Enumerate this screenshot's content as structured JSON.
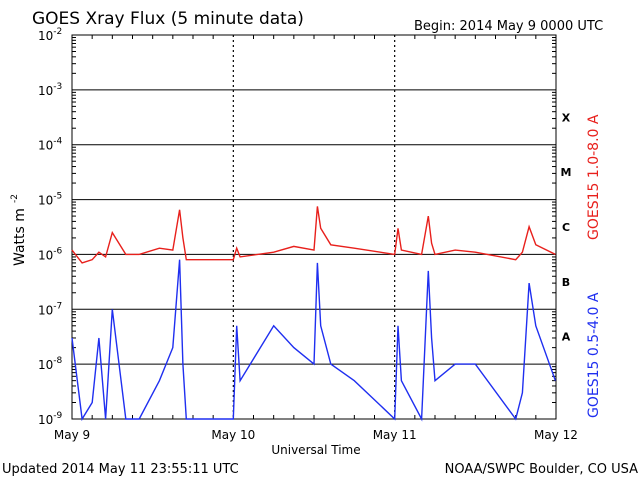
{
  "chart_data": {
    "type": "line",
    "title": "GOES Xray Flux (5 minute data)",
    "begin": "Begin:  2014 May 9 0000 UTC",
    "xlabel": "Universal Time",
    "ylabel": "Watts m",
    "ylabel_sup": "-2",
    "log_scale_y": true,
    "ylim": [
      1e-09,
      0.01
    ],
    "xlim": [
      "2014-05-09",
      "2014-05-12"
    ],
    "x_ticks": [
      "May 9",
      "May 10",
      "May 11",
      "May 12"
    ],
    "y_ticks": [
      {
        "base": "10",
        "exp": "-9"
      },
      {
        "base": "10",
        "exp": "-8"
      },
      {
        "base": "10",
        "exp": "-7"
      },
      {
        "base": "10",
        "exp": "-6"
      },
      {
        "base": "10",
        "exp": "-5"
      },
      {
        "base": "10",
        "exp": "-4"
      },
      {
        "base": "10",
        "exp": "-3"
      },
      {
        "base": "10",
        "exp": "-2"
      }
    ],
    "flare_classes": [
      "A",
      "B",
      "C",
      "M",
      "X"
    ],
    "series": [
      {
        "name": "GOES15 1.0-8.0 A",
        "color": "#e8201c",
        "x": [
          "2014-05-09 00:00",
          "2014-05-09 01:30",
          "2014-05-09 03:00",
          "2014-05-09 04:00",
          "2014-05-09 05:00",
          "2014-05-09 06:00",
          "2014-05-09 08:00",
          "2014-05-09 10:00",
          "2014-05-09 13:00",
          "2014-05-09 15:00",
          "2014-05-09 16:00",
          "2014-05-09 16:30",
          "2014-05-09 17:00",
          "2014-05-09 20:00",
          "2014-05-10 00:00",
          "2014-05-10 00:30",
          "2014-05-10 01:00",
          "2014-05-10 06:00",
          "2014-05-10 09:00",
          "2014-05-10 12:00",
          "2014-05-10 12:30",
          "2014-05-10 13:00",
          "2014-05-10 14:30",
          "2014-05-10 18:00",
          "2014-05-11 00:00",
          "2014-05-11 00:30",
          "2014-05-11 01:00",
          "2014-05-11 04:00",
          "2014-05-11 05:00",
          "2014-05-11 05:30",
          "2014-05-11 06:00",
          "2014-05-11 09:00",
          "2014-05-11 12:00",
          "2014-05-11 18:00",
          "2014-05-11 19:00",
          "2014-05-11 20:00",
          "2014-05-11 21:00",
          "2014-05-11 23:55"
        ],
        "values": [
          1.2e-06,
          7e-07,
          8e-07,
          1.1e-06,
          9e-07,
          2.5e-06,
          1e-06,
          1e-06,
          1.3e-06,
          1.2e-06,
          6.5e-06,
          2e-06,
          8e-07,
          8e-07,
          8e-07,
          1.3e-06,
          9e-07,
          1.1e-06,
          1.4e-06,
          1.2e-06,
          7.5e-06,
          3e-06,
          1.5e-06,
          1.3e-06,
          1e-06,
          3e-06,
          1.2e-06,
          1e-06,
          5e-06,
          1.6e-06,
          1e-06,
          1.2e-06,
          1.1e-06,
          8e-07,
          1.1e-06,
          3.2e-06,
          1.5e-06,
          1e-06
        ]
      },
      {
        "name": "GOES15 0.5-4.0 A",
        "color": "#1f2ff0",
        "x": [
          "2014-05-09 00:00",
          "2014-05-09 01:30",
          "2014-05-09 03:00",
          "2014-05-09 04:00",
          "2014-05-09 05:00",
          "2014-05-09 06:00",
          "2014-05-09 08:00",
          "2014-05-09 10:00",
          "2014-05-09 13:00",
          "2014-05-09 15:00",
          "2014-05-09 16:00",
          "2014-05-09 16:30",
          "2014-05-09 17:00",
          "2014-05-09 20:00",
          "2014-05-10 00:00",
          "2014-05-10 00:30",
          "2014-05-10 01:00",
          "2014-05-10 06:00",
          "2014-05-10 09:00",
          "2014-05-10 12:00",
          "2014-05-10 12:30",
          "2014-05-10 13:00",
          "2014-05-10 14:30",
          "2014-05-10 18:00",
          "2014-05-11 00:00",
          "2014-05-11 00:30",
          "2014-05-11 01:00",
          "2014-05-11 04:00",
          "2014-05-11 05:00",
          "2014-05-11 05:30",
          "2014-05-11 06:00",
          "2014-05-11 09:00",
          "2014-05-11 12:00",
          "2014-05-11 18:00",
          "2014-05-11 19:00",
          "2014-05-11 20:00",
          "2014-05-11 21:00",
          "2014-05-11 23:55"
        ],
        "values": [
          3e-08,
          1e-09,
          2e-09,
          3e-08,
          1e-09,
          1e-07,
          1e-09,
          1e-09,
          5e-09,
          2e-08,
          8e-07,
          1e-08,
          1e-09,
          1e-09,
          1e-09,
          5e-08,
          5e-09,
          5e-08,
          2e-08,
          1e-08,
          7e-07,
          5e-08,
          1e-08,
          5e-09,
          1e-09,
          5e-08,
          5e-09,
          1e-09,
          5e-07,
          3e-08,
          5e-09,
          1e-08,
          1e-08,
          1e-09,
          3e-09,
          3e-07,
          5e-08,
          5e-09
        ]
      }
    ]
  },
  "footer": {
    "updated": "Updated 2014 May 11 23:55:11 UTC",
    "credit": "NOAA/SWPC Boulder, CO USA"
  },
  "colors": {
    "long_channel": "#e8201c",
    "short_channel": "#1f2ff0",
    "axes": "#000000"
  }
}
